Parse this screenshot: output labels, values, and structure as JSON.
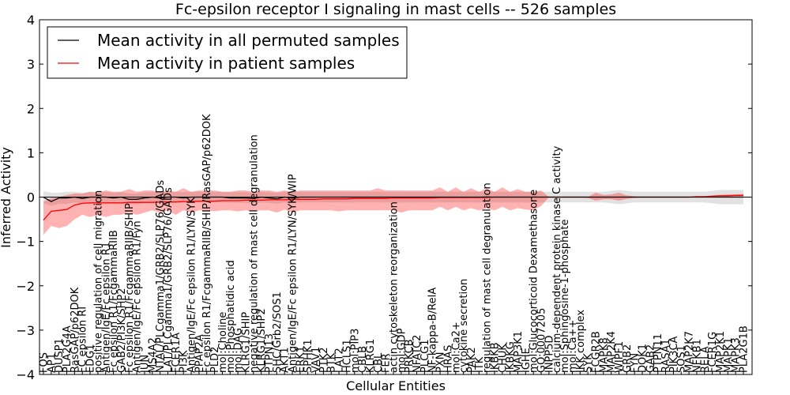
{
  "chart_data": {
    "type": "line",
    "title": "Fc-epsilon receptor I signaling in mast cells -- 526 samples",
    "xlabel": "Cellular Entities",
    "ylabel": "Inferred Activity",
    "ylim": [
      -4,
      4
    ],
    "yticks": [
      "4",
      "3",
      "2",
      "1",
      "0",
      "−1",
      "−2",
      "−3",
      "−4"
    ],
    "ytick_values": [
      4,
      3,
      2,
      1,
      0,
      -1,
      -2,
      -3,
      -4
    ],
    "legend": {
      "placement": "top-left",
      "entries": [
        {
          "label": "Mean activity in all permuted samples",
          "color": "#000000"
        },
        {
          "label": "Mean activity in patient samples",
          "color": "#ff0000"
        }
      ]
    },
    "categories": [
      "FOS",
      "AP1",
      "DUSP1",
      "PLA2G4A",
      "RasGAP/p62DOK",
      "FC epsilon RI",
      "EDG1",
      "positive regulation of cell migration",
      "Antigen/IgE/Fc epsilon R1",
      "Fc epsilon R1/FcgammaRIIB",
      "GAB2/PI3K/SHP2",
      "Fc epsilon R1/FcgammaRIIB/SHIP",
      "Antigen/IgE/Fc epsilon R1/Fyn",
      "JUN",
      "MS4A2",
      "NTAL/PLCgamma1/GRB2/SLP76/GADs",
      "LAT/PLCgamma1/GRB2/SLP76/GADs",
      "FCER1A",
      "PI3K",
      "Antigen/IgE/Fc epsilon R1/LYN/SYK",
      "PPAP2A",
      "Fc epsilon R1/FcgammaRIIB/SHIP/RasGAP/p62DOK",
      "PLD2",
      "mol:Choline",
      "mol:Phosphatidic acid",
      "mol:DAG",
      "KLRG1/SHIP",
      "negative regulation of mast cell degranulation",
      "KLRG1/SHP2",
      "PTPN13",
      "SHC/Grb2/SOS1",
      "AKT1",
      "Antigen/IgE/Fc epsilon R1/LYN/SYK/WIP",
      "ERK1",
      "SPHK1",
      "VAV1",
      "PTK2",
      "BTK",
      "LAT2",
      "HCLS1",
      "mol:PIP3",
      "CBLB",
      "KLRG1",
      "CBL",
      "FER",
      "actin cytoskeleton reorganization",
      "mol:GDP",
      "PRKCB",
      "NFATC2",
      "PLCG1",
      "NF-kappa-B/RelA",
      "PXN",
      "HRAS",
      "mol:Ca2+",
      "cytokine secretion",
      "PAK2",
      "ITK",
      "regulation of mast cell degranulation",
      "IKBKB",
      "CHUK",
      "IKBKG",
      "MAP3K1",
      "IGHE",
      "mol:Glucocorticoid Dexamethasone",
      "GO:0007205",
      "INPP5D",
      "calcium-dependent protein kinase C activity",
      "mol:Sphingosine-1-phosphate",
      "mol:Ca++",
      "IKK complex",
      "SYK",
      "FCGR2B",
      "MAPK8",
      "MAP2K4",
      "WIPF1",
      "GRB2",
      "FYN",
      "DOK1",
      "GAB2",
      "PTPN11",
      "RASA1",
      "PIK3CA",
      "SOS1",
      "MAP2K7",
      "NFKB1",
      "RELA",
      "FCER1G",
      "MAP2K1",
      "MAPK1",
      "MAPK3",
      "PLA2G1B"
    ],
    "series": [
      {
        "name": "Mean activity in all permuted samples",
        "color": "#000000",
        "values": [
          0.0,
          -0.1,
          -0.02,
          -0.02,
          0.0,
          -0.03,
          0.0,
          0.0,
          0.0,
          -0.02,
          0.0,
          -0.05,
          -0.05,
          -0.02,
          0.0,
          -0.02,
          0.0,
          0.0,
          -0.02,
          0.0,
          0.0,
          0.0,
          0.0,
          0.0,
          -0.02,
          -0.02,
          -0.02,
          -0.03,
          0.0,
          -0.02,
          -0.04,
          0.0,
          -0.02,
          0.0,
          0.0,
          0.0,
          0.0,
          0.0,
          0.0,
          0.0,
          0.0,
          0.0,
          0.0,
          0.0,
          0.0,
          0.0,
          0.0,
          0.0,
          0.0,
          0.0,
          0.0,
          0.0,
          0.0,
          0.0,
          0.0,
          0.0,
          0.0,
          0.0,
          0.0,
          0.0,
          0.0,
          0.0,
          0.0,
          0.0,
          0.0,
          0.0,
          0.0,
          0.0,
          0.0,
          0.0,
          0.0,
          0.0,
          0.0,
          0.0,
          0.0,
          0.0,
          0.0,
          0.0,
          0.0,
          0.0,
          0.0,
          0.0,
          0.0,
          0.0,
          0.0,
          0.0,
          0.0,
          0.0,
          0.0,
          0.0,
          0.0
        ],
        "band_low": [
          -0.13,
          -0.2,
          -0.15,
          -0.15,
          -0.12,
          -0.15,
          -0.12,
          -0.12,
          -0.12,
          -0.14,
          -0.12,
          -0.16,
          -0.16,
          -0.13,
          -0.12,
          -0.13,
          -0.12,
          -0.12,
          -0.13,
          -0.12,
          -0.12,
          -0.12,
          -0.12,
          -0.12,
          -0.13,
          -0.13,
          -0.13,
          -0.14,
          -0.12,
          -0.13,
          -0.15,
          -0.12,
          -0.13,
          -0.12,
          -0.12,
          -0.12,
          -0.12,
          -0.12,
          -0.12,
          -0.12,
          -0.12,
          -0.12,
          -0.12,
          -0.12,
          -0.12,
          -0.12,
          -0.12,
          -0.12,
          -0.12,
          -0.12,
          -0.12,
          -0.12,
          -0.12,
          -0.12,
          -0.12,
          -0.12,
          -0.12,
          -0.12,
          -0.12,
          -0.12,
          -0.12,
          -0.12,
          -0.12,
          -0.12,
          -0.12,
          -0.12,
          -0.12,
          -0.12,
          -0.12,
          -0.12,
          -0.12,
          -0.12,
          -0.12,
          -0.14,
          -0.16,
          -0.14,
          -0.12,
          -0.12,
          -0.12,
          -0.12,
          -0.12,
          -0.12,
          -0.12,
          -0.12,
          -0.12,
          -0.12,
          -0.14,
          -0.16,
          -0.16,
          -0.16,
          -0.16
        ],
        "band_high": [
          0.13,
          0.1,
          0.1,
          0.12,
          0.12,
          0.1,
          0.12,
          0.12,
          0.12,
          0.1,
          0.12,
          0.08,
          0.08,
          0.11,
          0.12,
          0.11,
          0.12,
          0.12,
          0.11,
          0.12,
          0.12,
          0.12,
          0.12,
          0.12,
          0.11,
          0.11,
          0.11,
          0.1,
          0.12,
          0.11,
          0.09,
          0.12,
          0.11,
          0.12,
          0.12,
          0.12,
          0.12,
          0.12,
          0.12,
          0.12,
          0.12,
          0.12,
          0.12,
          0.12,
          0.12,
          0.12,
          0.12,
          0.12,
          0.12,
          0.12,
          0.12,
          0.12,
          0.12,
          0.12,
          0.12,
          0.12,
          0.12,
          0.12,
          0.12,
          0.12,
          0.12,
          0.12,
          0.12,
          0.12,
          0.12,
          0.12,
          0.12,
          0.12,
          0.12,
          0.12,
          0.12,
          0.12,
          0.12,
          0.14,
          0.16,
          0.14,
          0.12,
          0.12,
          0.12,
          0.12,
          0.12,
          0.12,
          0.12,
          0.12,
          0.12,
          0.12,
          0.14,
          0.16,
          0.16,
          0.16,
          0.16
        ]
      },
      {
        "name": "Mean activity in patient samples",
        "color": "#ff0000",
        "values": [
          -0.52,
          -0.32,
          -0.3,
          -0.28,
          -0.18,
          -0.14,
          -0.13,
          -0.13,
          -0.13,
          -0.13,
          -0.13,
          -0.12,
          -0.12,
          -0.12,
          -0.12,
          -0.11,
          -0.11,
          -0.11,
          -0.1,
          -0.1,
          -0.09,
          -0.09,
          -0.09,
          -0.08,
          -0.08,
          -0.08,
          -0.07,
          -0.07,
          -0.07,
          -0.06,
          -0.06,
          -0.06,
          -0.05,
          -0.05,
          -0.05,
          -0.05,
          -0.04,
          -0.04,
          -0.04,
          -0.04,
          -0.03,
          -0.03,
          -0.03,
          -0.03,
          -0.03,
          -0.02,
          -0.02,
          -0.02,
          -0.02,
          -0.02,
          -0.02,
          -0.01,
          -0.01,
          -0.01,
          -0.01,
          -0.01,
          -0.01,
          -0.01,
          0.0,
          0.0,
          0.0,
          0.0,
          0.0,
          0.0,
          0.0,
          0.0,
          0.0,
          0.0,
          0.0,
          0.0,
          0.0,
          0.0,
          0.0,
          0.0,
          0.0,
          0.0,
          0.0,
          0.0,
          0.0,
          0.0,
          0.0,
          0.0,
          0.0,
          0.0,
          0.01,
          0.01,
          0.02,
          0.03,
          0.03,
          0.04,
          0.04
        ],
        "band_low": [
          -0.85,
          -0.65,
          -0.7,
          -0.65,
          -0.5,
          -0.4,
          -0.45,
          -0.4,
          -0.45,
          -0.4,
          -0.4,
          -0.35,
          -0.4,
          -0.35,
          -0.3,
          -0.35,
          -0.3,
          -0.4,
          -0.3,
          -0.35,
          -0.3,
          -0.3,
          -0.32,
          -0.3,
          -0.3,
          -0.32,
          -0.3,
          -0.32,
          -0.3,
          -0.3,
          -0.35,
          -0.28,
          -0.35,
          -0.3,
          -0.3,
          -0.3,
          -0.3,
          -0.3,
          -0.32,
          -0.3,
          -0.3,
          -0.3,
          -0.3,
          -0.3,
          -0.3,
          -0.3,
          -0.35,
          -0.3,
          -0.3,
          -0.3,
          -0.3,
          -0.22,
          -0.3,
          -0.22,
          -0.3,
          -0.25,
          -0.3,
          -0.25,
          -0.3,
          -0.22,
          -0.3,
          -0.25,
          -0.28,
          -0.3,
          -0.2,
          0.0,
          -0.02,
          0.0,
          0.0,
          0.0,
          -0.02,
          -0.08,
          -0.05,
          -0.05,
          -0.08,
          -0.04,
          -0.02,
          0.0,
          0.0,
          0.0,
          0.0,
          0.0,
          0.0,
          0.0,
          0.0,
          0.0,
          0.0,
          0.0,
          0.01,
          0.01,
          0.01
        ],
        "band_high": [
          -0.1,
          -0.02,
          0.0,
          0.05,
          0.08,
          0.08,
          0.12,
          0.1,
          0.15,
          0.12,
          0.12,
          0.18,
          0.12,
          0.15,
          0.15,
          0.12,
          0.15,
          0.12,
          0.2,
          0.12,
          0.15,
          0.15,
          0.15,
          0.12,
          0.12,
          0.15,
          0.15,
          0.12,
          0.15,
          0.15,
          0.12,
          0.15,
          0.12,
          0.15,
          0.15,
          0.15,
          0.15,
          0.15,
          0.15,
          0.15,
          0.15,
          0.15,
          0.15,
          0.2,
          0.15,
          0.15,
          0.15,
          0.15,
          0.15,
          0.15,
          0.15,
          0.22,
          0.12,
          0.22,
          0.12,
          0.2,
          0.12,
          0.2,
          0.12,
          0.22,
          0.12,
          0.18,
          0.12,
          0.12,
          0.15,
          0.0,
          0.0,
          0.0,
          0.0,
          0.0,
          0.0,
          0.1,
          0.05,
          0.06,
          0.1,
          0.04,
          0.02,
          0.0,
          0.0,
          0.0,
          0.0,
          0.0,
          0.0,
          0.0,
          0.02,
          0.02,
          0.04,
          0.05,
          0.06,
          0.06,
          0.07
        ]
      }
    ],
    "grid": false
  }
}
